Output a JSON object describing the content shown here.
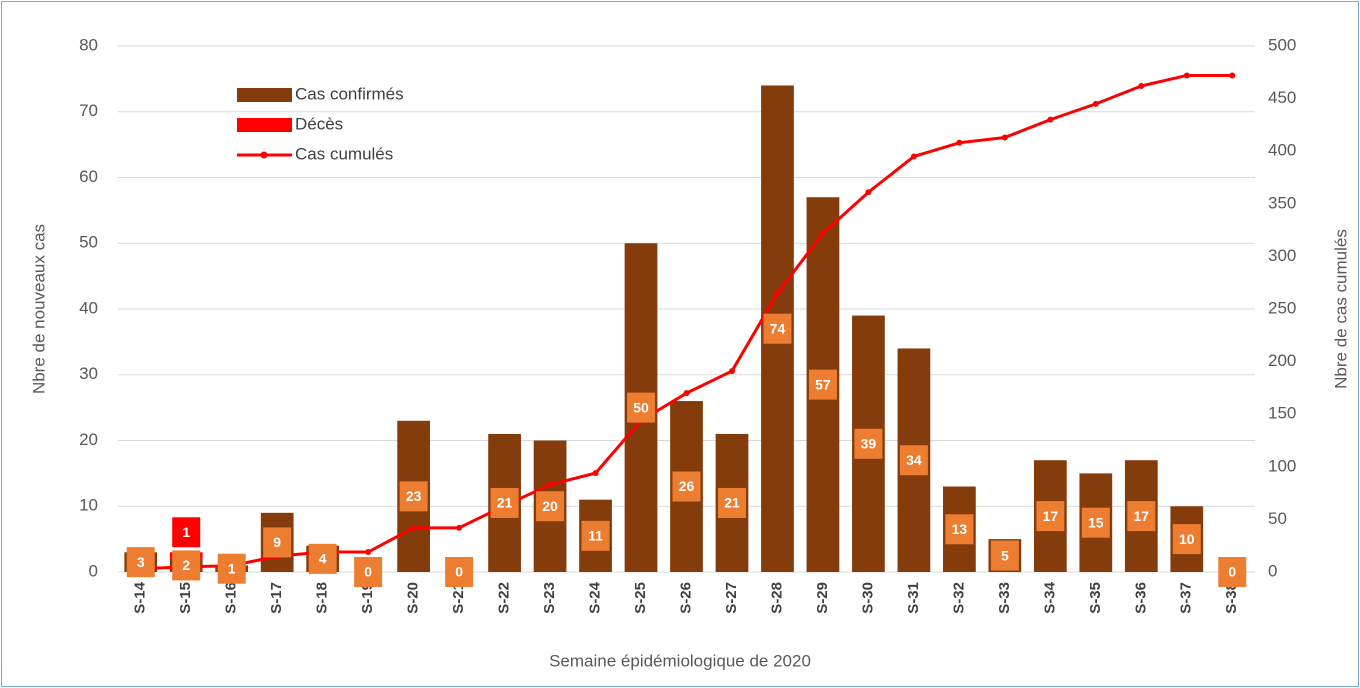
{
  "chart_data": {
    "type": "bar",
    "x_label": "Semaine épidémiologique de 2020",
    "y_label": "Nbre de nouveaux cas",
    "y2_label": "Nbre de cas cumulés",
    "categories": [
      "S-14",
      "S-15",
      "S-16",
      "S-17",
      "S-18",
      "S-19",
      "S-20",
      "S-21",
      "S-22",
      "S-23",
      "S-24",
      "S-25",
      "S-26",
      "S-27",
      "S-28",
      "S-29",
      "S-30",
      "S-31",
      "S-32",
      "S-33",
      "S-34",
      "S-35",
      "S-36",
      "S-37",
      "S-38"
    ],
    "series": [
      {
        "name": "Cas confirmés",
        "type": "bar",
        "color": "#843c0c",
        "label_color": "#ed7d31",
        "values": [
          3,
          2,
          1,
          9,
          4,
          0,
          23,
          0,
          21,
          20,
          11,
          50,
          26,
          21,
          74,
          57,
          39,
          34,
          13,
          5,
          17,
          15,
          17,
          10,
          0
        ]
      },
      {
        "name": "Décès",
        "type": "bar",
        "color": "#ff0000",
        "label_color": "#ff0000",
        "values": [
          0,
          1,
          0,
          0,
          0,
          0,
          0,
          0,
          0,
          0,
          0,
          0,
          0,
          0,
          0,
          0,
          0,
          0,
          0,
          0,
          0,
          0,
          0,
          0,
          0
        ]
      },
      {
        "name": "Cas cumulés",
        "type": "line",
        "axis": "y2",
        "color": "#ff0000",
        "values": [
          3,
          5,
          6,
          15,
          19,
          19,
          42,
          42,
          63,
          83,
          94,
          144,
          170,
          191,
          265,
          322,
          361,
          395,
          408,
          413,
          430,
          445,
          462,
          472,
          472
        ]
      }
    ],
    "ylim": [
      0,
      80
    ],
    "yticks": [
      0,
      10,
      20,
      30,
      40,
      50,
      60,
      70,
      80
    ],
    "y2lim": [
      0,
      500
    ],
    "y2ticks": [
      0,
      50,
      100,
      150,
      200,
      250,
      300,
      350,
      400,
      450,
      500
    ],
    "grid": true,
    "legend": "upper left"
  }
}
